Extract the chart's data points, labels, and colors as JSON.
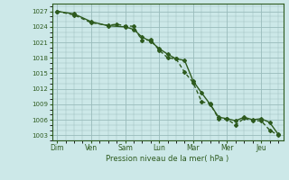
{
  "title": "",
  "xlabel": "Pression niveau de la mer( hPa )",
  "ylabel": "",
  "bg_color": "#cce8e8",
  "grid_color": "#99bbbb",
  "line_color": "#2d5a1e",
  "marker_color": "#2d5a1e",
  "ylim": [
    1002,
    1028.5
  ],
  "yticks": [
    1003,
    1006,
    1009,
    1012,
    1015,
    1018,
    1021,
    1024,
    1027
  ],
  "day_labels": [
    "Dim",
    "Ven",
    "Sam",
    "Lun",
    "Mar",
    "Mer",
    "Jeu"
  ],
  "day_positions": [
    0,
    2,
    4,
    6,
    8,
    10,
    12
  ],
  "line1_x": [
    0,
    1,
    2,
    3,
    4,
    4.5,
    5,
    5.5,
    6,
    6.5,
    7,
    7.5,
    8,
    8.5,
    9,
    9.5,
    10,
    10.5,
    11,
    11.5,
    12,
    12.5,
    13
  ],
  "line1_y": [
    1027,
    1026.5,
    1025.0,
    1024.2,
    1024.0,
    1023.5,
    1022.0,
    1021.2,
    1019.8,
    1018.7,
    1017.8,
    1017.5,
    1013.5,
    1011.2,
    1009.0,
    1006.5,
    1006.2,
    1005.8,
    1006.5,
    1006.0,
    1006.2,
    1005.5,
    1003.2
  ],
  "line2_x": [
    0,
    1,
    2,
    3,
    3.5,
    4,
    4.5,
    5,
    5.5,
    6,
    6.5,
    7,
    7.5,
    8,
    8.5,
    9,
    9.5,
    10,
    10.5,
    11,
    11.5,
    12,
    12.5,
    13
  ],
  "line2_y": [
    1027,
    1026.3,
    1024.8,
    1024.3,
    1024.5,
    1024.2,
    1024.1,
    1021.3,
    1021.5,
    1019.5,
    1018.0,
    1017.8,
    1015.2,
    1013.2,
    1009.5,
    1009.1,
    1006.2,
    1006.1,
    1005.0,
    1006.3,
    1005.8,
    1005.8,
    1004.0,
    1003.0
  ]
}
